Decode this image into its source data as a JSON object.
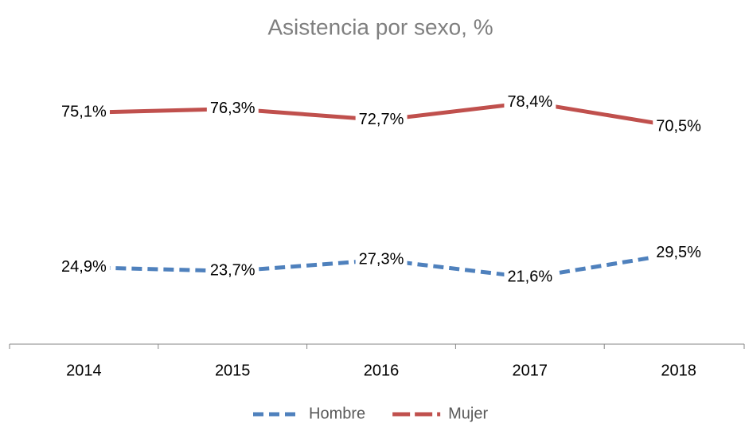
{
  "chart_data": {
    "type": "line",
    "title": "Asistencia por sexo, %",
    "categories": [
      "2014",
      "2015",
      "2016",
      "2017",
      "2018"
    ],
    "series": [
      {
        "name": "Hombre",
        "color": "#4f81bd",
        "dashed": true,
        "values": [
          24.9,
          23.7,
          27.3,
          21.6,
          29.5
        ],
        "value_labels": [
          "24,9%",
          "23,7%",
          "27,3%",
          "21,6%",
          "29,5%"
        ]
      },
      {
        "name": "Mujer",
        "color": "#c0504d",
        "dashed": true,
        "values": [
          75.1,
          76.3,
          72.7,
          78.4,
          70.5
        ],
        "value_labels": [
          "75,1%",
          "76,3%",
          "72,7%",
          "78,4%",
          "70,5%"
        ]
      }
    ],
    "ylim": [
      0,
      100
    ],
    "legend": "bottom"
  }
}
